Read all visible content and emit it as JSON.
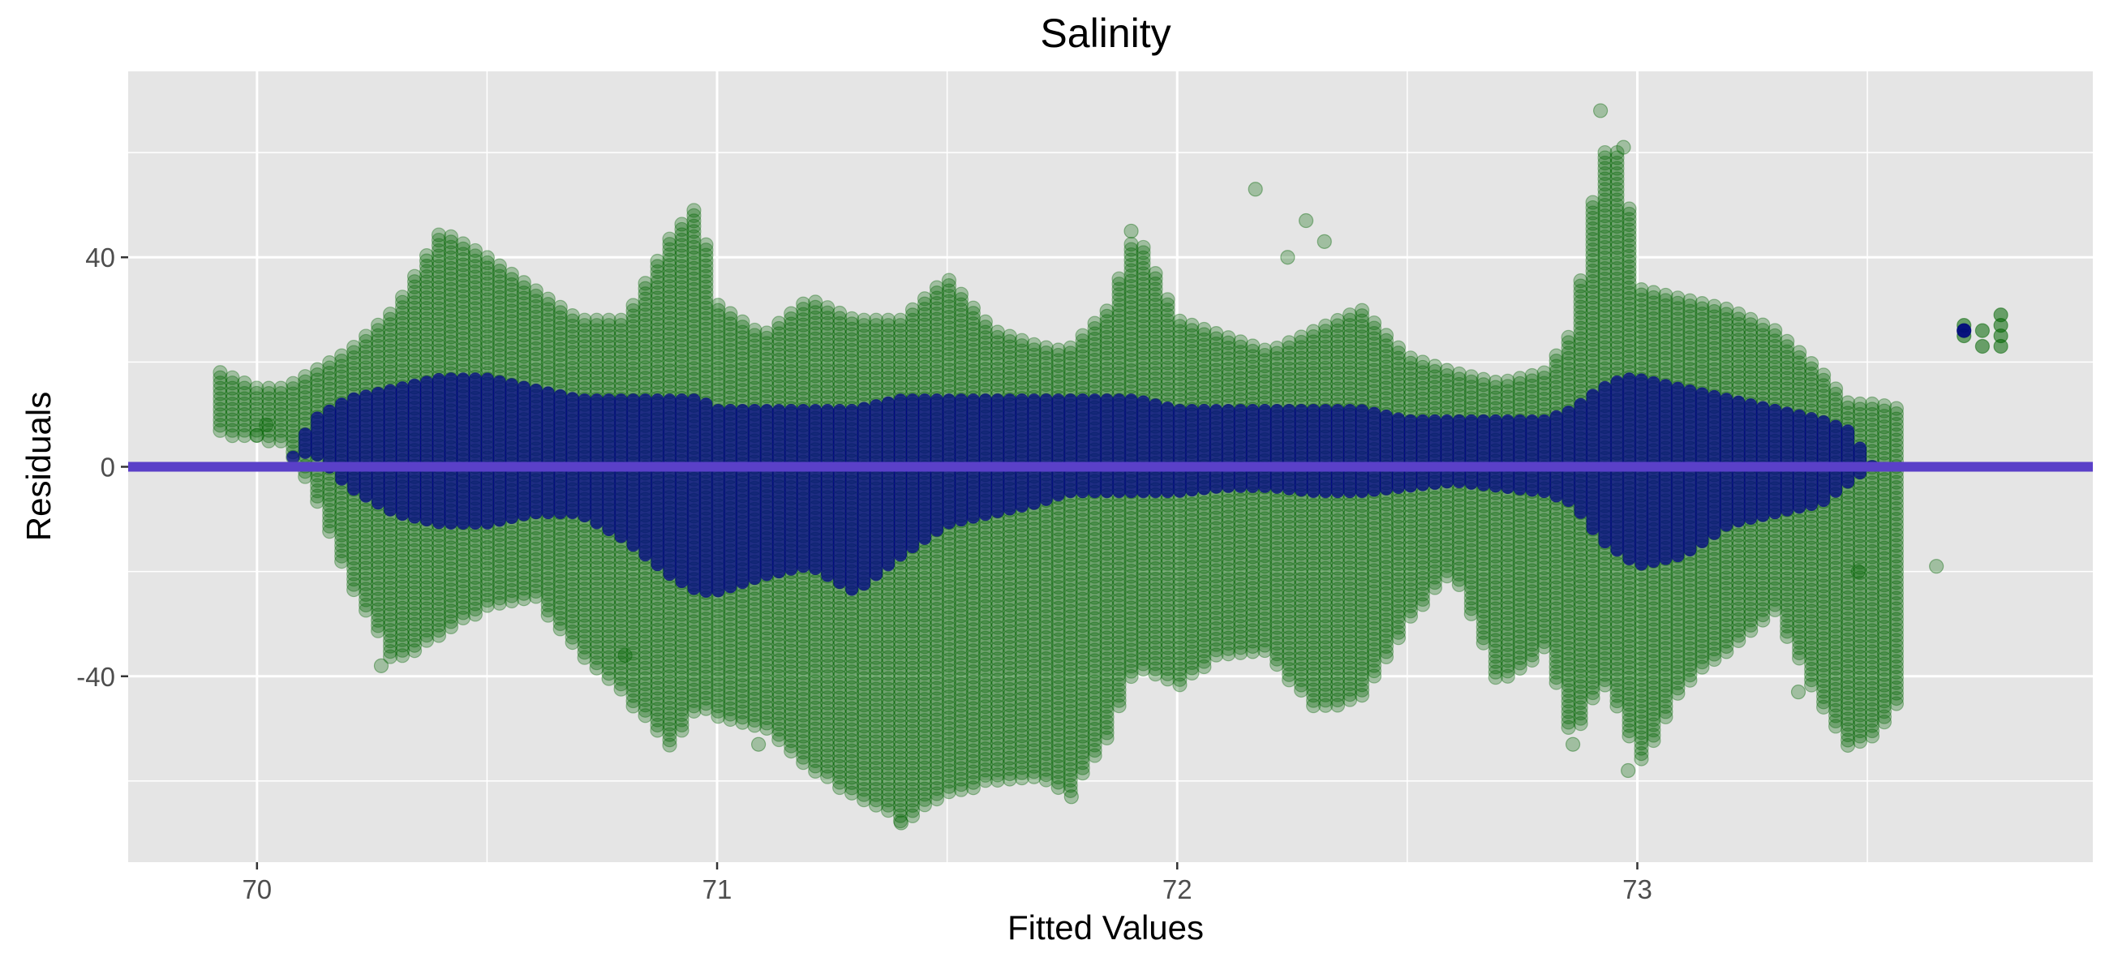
{
  "chart_data": {
    "type": "scatter",
    "title": "Salinity",
    "xlabel": "Fitted Values",
    "ylabel": "Residuals",
    "xlim": [
      69.72,
      73.99
    ],
    "ylim": [
      -75.5,
      75.5
    ],
    "x_ticks": [
      70,
      71,
      72,
      73
    ],
    "x_tick_labels": [
      "70",
      "71",
      "72",
      "73"
    ],
    "x_minor_ticks": [
      70.5,
      71.5,
      72.5,
      73.5
    ],
    "y_ticks": [
      -40,
      0,
      40
    ],
    "y_tick_labels": [
      "-40",
      "0",
      "40"
    ],
    "y_minor_ticks": [
      -60,
      -20,
      20,
      60
    ],
    "grid": true,
    "panel_background": "#e5e5e5",
    "grid_color": "#ffffff",
    "point_color": "#006400",
    "point_alpha": 0.3,
    "dense_core_color": "#00008b",
    "reference_line": {
      "y": 0,
      "color": "#5a40c8"
    },
    "column_spacing": 0.0264,
    "profile": [
      {
        "x": 69.92,
        "min": 6,
        "max": 18,
        "core_lo": 0,
        "core_hi": 0
      },
      {
        "x": 70.0,
        "min": 5,
        "max": 15,
        "core_lo": 0,
        "core_hi": 0
      },
      {
        "x": 70.06,
        "min": 4,
        "max": 15,
        "core_lo": 0,
        "core_hi": 0
      },
      {
        "x": 70.12,
        "min": -5,
        "max": 18,
        "core_lo": 2,
        "core_hi": 10
      },
      {
        "x": 70.2,
        "min": -22,
        "max": 22,
        "core_lo": -5,
        "core_hi": 14
      },
      {
        "x": 70.3,
        "min": -38,
        "max": 30,
        "core_lo": -10,
        "core_hi": 16
      },
      {
        "x": 70.4,
        "min": -32,
        "max": 45,
        "core_lo": -12,
        "core_hi": 18
      },
      {
        "x": 70.5,
        "min": -27,
        "max": 40,
        "core_lo": -12,
        "core_hi": 18
      },
      {
        "x": 70.6,
        "min": -25,
        "max": 34,
        "core_lo": -10,
        "core_hi": 16
      },
      {
        "x": 70.7,
        "min": -36,
        "max": 28,
        "core_lo": -10,
        "core_hi": 14
      },
      {
        "x": 70.8,
        "min": -44,
        "max": 28,
        "core_lo": -15,
        "core_hi": 14
      },
      {
        "x": 70.9,
        "min": -54,
        "max": 44,
        "core_lo": -22,
        "core_hi": 14
      },
      {
        "x": 70.96,
        "min": -46,
        "max": 50,
        "core_lo": -25,
        "core_hi": 14
      },
      {
        "x": 71.0,
        "min": -48,
        "max": 31,
        "core_lo": -25,
        "core_hi": 12
      },
      {
        "x": 71.1,
        "min": -50,
        "max": 25,
        "core_lo": -22,
        "core_hi": 12
      },
      {
        "x": 71.2,
        "min": -58,
        "max": 32,
        "core_lo": -20,
        "core_hi": 12
      },
      {
        "x": 71.3,
        "min": -63,
        "max": 28,
        "core_lo": -25,
        "core_hi": 12
      },
      {
        "x": 71.4,
        "min": -68,
        "max": 28,
        "core_lo": -18,
        "core_hi": 14
      },
      {
        "x": 71.5,
        "min": -63,
        "max": 36,
        "core_lo": -12,
        "core_hi": 14
      },
      {
        "x": 71.6,
        "min": -60,
        "max": 26,
        "core_lo": -10,
        "core_hi": 14
      },
      {
        "x": 71.7,
        "min": -60,
        "max": 23,
        "core_lo": -8,
        "core_hi": 14
      },
      {
        "x": 71.76,
        "min": -63,
        "max": 22,
        "core_lo": -6,
        "core_hi": 14
      },
      {
        "x": 71.85,
        "min": -52,
        "max": 30,
        "core_lo": -6,
        "core_hi": 14
      },
      {
        "x": 71.91,
        "min": -38,
        "max": 45,
        "core_lo": -6,
        "core_hi": 14
      },
      {
        "x": 72.0,
        "min": -42,
        "max": 28,
        "core_lo": -6,
        "core_hi": 12
      },
      {
        "x": 72.1,
        "min": -36,
        "max": 25,
        "core_lo": -5,
        "core_hi": 12
      },
      {
        "x": 72.2,
        "min": -36,
        "max": 22,
        "core_lo": -5,
        "core_hi": 12
      },
      {
        "x": 72.3,
        "min": -47,
        "max": 26,
        "core_lo": -6,
        "core_hi": 12
      },
      {
        "x": 72.4,
        "min": -44,
        "max": 30,
        "core_lo": -6,
        "core_hi": 12
      },
      {
        "x": 72.5,
        "min": -30,
        "max": 21,
        "core_lo": -5,
        "core_hi": 10
      },
      {
        "x": 72.6,
        "min": -20,
        "max": 18,
        "core_lo": -4,
        "core_hi": 10
      },
      {
        "x": 72.7,
        "min": -42,
        "max": 16,
        "core_lo": -5,
        "core_hi": 10
      },
      {
        "x": 72.8,
        "min": -35,
        "max": 18,
        "core_lo": -6,
        "core_hi": 10
      },
      {
        "x": 72.86,
        "min": -53,
        "max": 26,
        "core_lo": -8,
        "core_hi": 12
      },
      {
        "x": 72.92,
        "min": -41,
        "max": 60,
        "core_lo": -15,
        "core_hi": 16
      },
      {
        "x": 72.97,
        "min": -48,
        "max": 60,
        "core_lo": -18,
        "core_hi": 18
      },
      {
        "x": 73.0,
        "min": -58,
        "max": 34,
        "core_lo": -20,
        "core_hi": 18
      },
      {
        "x": 73.1,
        "min": -42,
        "max": 32,
        "core_lo": -18,
        "core_hi": 16
      },
      {
        "x": 73.2,
        "min": -35,
        "max": 30,
        "core_lo": -12,
        "core_hi": 14
      },
      {
        "x": 73.3,
        "min": -28,
        "max": 26,
        "core_lo": -10,
        "core_hi": 12
      },
      {
        "x": 73.4,
        "min": -46,
        "max": 18,
        "core_lo": -8,
        "core_hi": 10
      },
      {
        "x": 73.46,
        "min": -54,
        "max": 12,
        "core_lo": -4,
        "core_hi": 8
      },
      {
        "x": 73.52,
        "min": -52,
        "max": 12,
        "core_lo": 0,
        "core_hi": 0
      },
      {
        "x": 73.57,
        "min": -45,
        "max": 11,
        "core_lo": 0,
        "core_hi": 0
      }
    ],
    "extra_points": [
      {
        "x": 70.0,
        "y": 6
      },
      {
        "x": 70.02,
        "y": 8
      },
      {
        "x": 70.27,
        "y": -38
      },
      {
        "x": 70.8,
        "y": -36
      },
      {
        "x": 71.09,
        "y": -53
      },
      {
        "x": 71.4,
        "y": -68
      },
      {
        "x": 71.77,
        "y": -63
      },
      {
        "x": 71.9,
        "y": 45
      },
      {
        "x": 72.17,
        "y": 53
      },
      {
        "x": 72.24,
        "y": 40
      },
      {
        "x": 72.28,
        "y": 47
      },
      {
        "x": 72.32,
        "y": 43
      },
      {
        "x": 72.86,
        "y": -53
      },
      {
        "x": 72.92,
        "y": 68
      },
      {
        "x": 72.97,
        "y": 61
      },
      {
        "x": 72.98,
        "y": -58
      },
      {
        "x": 73.65,
        "y": -19
      },
      {
        "x": 73.35,
        "y": -43
      },
      {
        "x": 73.48,
        "y": -20
      }
    ],
    "outlier_cluster": [
      {
        "x": 73.71,
        "y": 25
      },
      {
        "x": 73.71,
        "y": 26
      },
      {
        "x": 73.71,
        "y": 27
      },
      {
        "x": 73.75,
        "y": 23
      },
      {
        "x": 73.75,
        "y": 26
      },
      {
        "x": 73.79,
        "y": 23
      },
      {
        "x": 73.79,
        "y": 25
      },
      {
        "x": 73.79,
        "y": 27
      },
      {
        "x": 73.79,
        "y": 29
      }
    ]
  }
}
